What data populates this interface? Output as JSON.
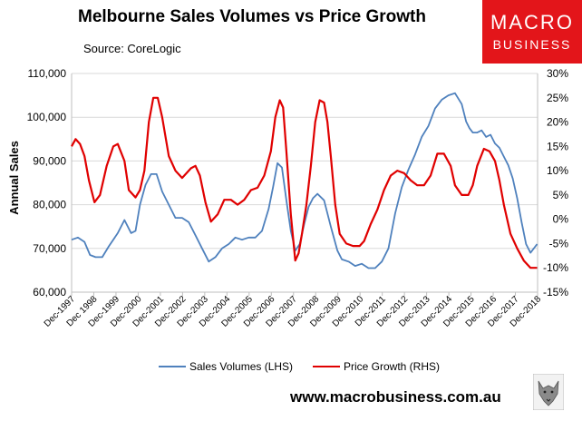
{
  "header": {
    "title": "Melbourne Sales Volumes vs Price Growth",
    "source": "Source: CoreLogic"
  },
  "logo": {
    "line1": "MACRO",
    "line2": "BUSINESS",
    "color": "#e3151a"
  },
  "footer": {
    "url": "www.macrobusiness.com.au"
  },
  "chart_data": {
    "type": "line",
    "ylabel_left": "Annual Sales",
    "ylim_left": [
      60000,
      110000
    ],
    "yticks_left": [
      "60,000",
      "70,000",
      "80,000",
      "90,000",
      "100,000",
      "110,000"
    ],
    "ylim_right": [
      -15,
      30
    ],
    "yticks_right": [
      "-15%",
      "-10%",
      "-5%",
      "0%",
      "5%",
      "10%",
      "15%",
      "20%",
      "25%",
      "30%"
    ],
    "xlim": [
      1997.92,
      2018.92
    ],
    "xtick_labels": [
      "Dec-1997",
      "Dec 1998",
      "Dec-1999",
      "Dec-2000",
      "Dec-2001",
      "Dec-2002",
      "Dec-2003",
      "Dec-2004",
      "Dec-2005",
      "Dec-2006",
      "Dec-2007",
      "Dec-2008",
      "Dec-2009",
      "Dec-2010",
      "Dec-2011",
      "Dec-2012",
      "Dec-2013",
      "Dec-2014",
      "Dec-2015",
      "Dec-2016",
      "Dec-2017",
      "Dec-2018"
    ],
    "grid": true,
    "legend_position": "bottom",
    "series": [
      {
        "name": "Sales Volumes (LHS)",
        "axis": "left",
        "color": "#4f81bd",
        "x": [
          1997.92,
          1998.2,
          1998.5,
          1998.75,
          1999.0,
          1999.3,
          1999.6,
          2000.0,
          2000.3,
          2000.6,
          2000.8,
          2001.0,
          2001.25,
          2001.5,
          2001.75,
          2002.0,
          2002.3,
          2002.6,
          2002.9,
          2003.2,
          2003.5,
          2003.8,
          2004.1,
          2004.4,
          2004.7,
          2005.0,
          2005.3,
          2005.6,
          2005.9,
          2006.2,
          2006.5,
          2006.8,
          2007.0,
          2007.2,
          2007.4,
          2007.6,
          2007.8,
          2008.0,
          2008.2,
          2008.4,
          2008.6,
          2008.8,
          2009.0,
          2009.3,
          2009.6,
          2009.9,
          2010.1,
          2010.4,
          2010.7,
          2011.0,
          2011.3,
          2011.6,
          2011.9,
          2012.2,
          2012.5,
          2012.8,
          2013.1,
          2013.4,
          2013.7,
          2014.0,
          2014.3,
          2014.6,
          2014.9,
          2015.2,
          2015.5,
          2015.7,
          2015.85,
          2016.0,
          2016.2,
          2016.4,
          2016.6,
          2016.8,
          2017.0,
          2017.2,
          2017.4,
          2017.6,
          2017.8,
          2018.0,
          2018.2,
          2018.4,
          2018.6,
          2018.9
        ],
        "values": [
          72000,
          72500,
          71500,
          68500,
          68000,
          68000,
          70500,
          73500,
          76500,
          73500,
          74000,
          80000,
          84500,
          87000,
          87000,
          83000,
          80000,
          77000,
          77000,
          76000,
          73000,
          70000,
          67000,
          68000,
          70000,
          71000,
          72500,
          72000,
          72500,
          72500,
          74000,
          79000,
          84000,
          89500,
          88500,
          81000,
          74000,
          69500,
          71000,
          75500,
          79500,
          81500,
          82500,
          81000,
          75000,
          69500,
          67500,
          67000,
          66000,
          66500,
          65500,
          65500,
          67000,
          70000,
          78000,
          84000,
          88000,
          91500,
          95500,
          98000,
          102000,
          104000,
          105000,
          105500,
          103000,
          99000,
          97500,
          96500,
          96500,
          97000,
          95500,
          96000,
          94000,
          93000,
          91000,
          89000,
          86000,
          81500,
          76000,
          71000,
          69000,
          71000
        ]
      },
      {
        "name": "Price Growth (RHS)",
        "axis": "right",
        "color": "#e00000",
        "x": [
          1997.92,
          1998.1,
          1998.3,
          1998.5,
          1998.7,
          1998.95,
          1999.2,
          1999.5,
          1999.8,
          2000.0,
          2000.3,
          2000.5,
          2000.8,
          2001.0,
          2001.2,
          2001.4,
          2001.6,
          2001.8,
          2002.0,
          2002.3,
          2002.6,
          2002.9,
          2003.1,
          2003.3,
          2003.5,
          2003.7,
          2003.95,
          2004.2,
          2004.5,
          2004.8,
          2005.1,
          2005.4,
          2005.7,
          2006.0,
          2006.3,
          2006.6,
          2006.9,
          2007.1,
          2007.3,
          2007.45,
          2007.6,
          2007.8,
          2008.0,
          2008.15,
          2008.3,
          2008.5,
          2008.7,
          2008.9,
          2009.1,
          2009.3,
          2009.45,
          2009.6,
          2009.8,
          2010.0,
          2010.3,
          2010.6,
          2010.9,
          2011.1,
          2011.4,
          2011.7,
          2012.0,
          2012.3,
          2012.6,
          2012.9,
          2013.2,
          2013.5,
          2013.8,
          2014.1,
          2014.4,
          2014.7,
          2015.0,
          2015.2,
          2015.5,
          2015.8,
          2016.0,
          2016.2,
          2016.5,
          2016.75,
          2017.0,
          2017.2,
          2017.4,
          2017.7,
          2018.0,
          2018.3,
          2018.6,
          2018.9
        ],
        "values": [
          15,
          16.5,
          15.5,
          13,
          8,
          3.5,
          5,
          11,
          15,
          15.5,
          12,
          6,
          4.5,
          6,
          10,
          20,
          25,
          25,
          21,
          13,
          10,
          8.5,
          9.5,
          10.5,
          11,
          9,
          3.5,
          -0.5,
          1,
          4,
          4,
          3,
          4,
          6,
          6.5,
          9,
          14,
          21,
          24.5,
          23,
          14,
          1,
          -8.5,
          -7,
          -3,
          3,
          11,
          20,
          24.5,
          24,
          20,
          13,
          3,
          -3,
          -5,
          -5.5,
          -5.5,
          -4.5,
          -1,
          2,
          6,
          9,
          10,
          9.5,
          8,
          7,
          7,
          9,
          13.5,
          13.5,
          11,
          7,
          5,
          5,
          7,
          11,
          14.5,
          14,
          12,
          8,
          3,
          -3,
          -6,
          -8.5,
          -10,
          -10
        ]
      }
    ]
  }
}
